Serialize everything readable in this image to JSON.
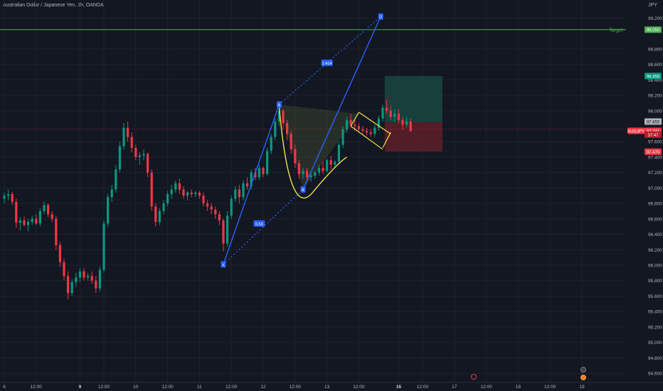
{
  "header": {
    "title": "Australian Dollar / Japanese Yen, 1h, OANDA",
    "currency": "JPY"
  },
  "chart_data": {
    "type": "candlestick",
    "symbol": "AUDJPY",
    "yrange": [
      94.55,
      99.35
    ],
    "yticks": [
      {
        "v": 99.2,
        "label": "99.200"
      },
      {
        "v": 98.8,
        "label": "98.800"
      },
      {
        "v": 98.6,
        "label": "98.600"
      },
      {
        "v": 98.4,
        "label": "98.400"
      },
      {
        "v": 98.2,
        "label": "98.200"
      },
      {
        "v": 98.0,
        "label": "98.000"
      },
      {
        "v": 97.6,
        "label": "97.600"
      },
      {
        "v": 97.4,
        "label": "97.400"
      },
      {
        "v": 97.2,
        "label": "97.200"
      },
      {
        "v": 97.0,
        "label": "97.000"
      },
      {
        "v": 96.8,
        "label": "96.800"
      },
      {
        "v": 96.6,
        "label": "96.600"
      },
      {
        "v": 96.4,
        "label": "96.400"
      },
      {
        "v": 96.2,
        "label": "96.200"
      },
      {
        "v": 96.0,
        "label": "96.000"
      },
      {
        "v": 95.8,
        "label": "95.800"
      },
      {
        "v": 95.6,
        "label": "95.600"
      },
      {
        "v": 95.4,
        "label": "95.400"
      },
      {
        "v": 95.2,
        "label": "95.200"
      },
      {
        "v": 95.0,
        "label": "95.000"
      },
      {
        "v": 94.8,
        "label": "94.800"
      },
      {
        "v": 94.6,
        "label": "94.600"
      }
    ],
    "xrange": [
      0,
      152
    ],
    "xticks": [
      {
        "t": 0,
        "label": "6",
        "bold": false
      },
      {
        "t": 8,
        "label": "12:00",
        "bold": false
      },
      {
        "t": 19,
        "label": "9",
        "bold": true
      },
      {
        "t": 25,
        "label": "12:00",
        "bold": false
      },
      {
        "t": 33,
        "label": "10",
        "bold": false
      },
      {
        "t": 41,
        "label": "12:00",
        "bold": false
      },
      {
        "t": 49,
        "label": "11",
        "bold": false
      },
      {
        "t": 57,
        "label": "12:00",
        "bold": false
      },
      {
        "t": 65,
        "label": "12",
        "bold": false
      },
      {
        "t": 73,
        "label": "12:00",
        "bold": false
      },
      {
        "t": 81,
        "label": "13",
        "bold": false
      },
      {
        "t": 89,
        "label": "12:00",
        "bold": false
      },
      {
        "t": 99,
        "label": "16",
        "bold": true
      },
      {
        "t": 105,
        "label": "12:00",
        "bold": false
      },
      {
        "t": 113,
        "label": "17",
        "bold": false
      },
      {
        "t": 121,
        "label": "12:00",
        "bold": false
      },
      {
        "t": 129,
        "label": "18",
        "bold": false
      },
      {
        "t": 137,
        "label": "12:00",
        "bold": false
      },
      {
        "t": 145,
        "label": "19",
        "bold": false
      }
    ],
    "candles": [
      [
        96.86,
        96.94,
        96.8,
        96.9
      ],
      [
        96.9,
        96.98,
        96.84,
        96.92
      ],
      [
        96.92,
        96.95,
        96.78,
        96.82
      ],
      [
        96.82,
        96.86,
        96.48,
        96.55
      ],
      [
        96.55,
        96.62,
        96.45,
        96.58
      ],
      [
        96.58,
        96.63,
        96.5,
        96.52
      ],
      [
        96.52,
        96.6,
        96.44,
        96.56
      ],
      [
        96.56,
        96.64,
        96.52,
        96.6
      ],
      [
        96.6,
        96.66,
        96.52,
        96.54
      ],
      [
        96.54,
        96.74,
        96.5,
        96.7
      ],
      [
        96.7,
        96.82,
        96.66,
        96.78
      ],
      [
        96.78,
        96.8,
        96.62,
        96.66
      ],
      [
        96.66,
        96.7,
        96.56,
        96.6
      ],
      [
        96.6,
        96.64,
        96.2,
        96.26
      ],
      [
        96.26,
        96.3,
        95.98,
        96.04
      ],
      [
        96.04,
        96.08,
        95.8,
        95.86
      ],
      [
        95.86,
        95.92,
        95.56,
        95.64
      ],
      [
        95.64,
        95.82,
        95.6,
        95.78
      ],
      [
        95.78,
        95.9,
        95.72,
        95.84
      ],
      [
        95.84,
        95.96,
        95.78,
        95.92
      ],
      [
        95.92,
        95.96,
        95.8,
        95.84
      ],
      [
        95.84,
        95.9,
        95.8,
        95.86
      ],
      [
        95.86,
        95.92,
        95.76,
        95.8
      ],
      [
        95.8,
        95.86,
        95.64,
        95.7
      ],
      [
        95.7,
        95.98,
        95.66,
        95.94
      ],
      [
        95.94,
        96.58,
        95.9,
        96.54
      ],
      [
        96.54,
        96.92,
        96.5,
        96.88
      ],
      [
        96.88,
        97.04,
        96.82,
        96.98
      ],
      [
        96.98,
        97.3,
        96.94,
        97.24
      ],
      [
        97.24,
        97.6,
        97.2,
        97.54
      ],
      [
        97.54,
        97.84,
        97.5,
        97.78
      ],
      [
        97.78,
        97.86,
        97.6,
        97.66
      ],
      [
        97.66,
        97.72,
        97.46,
        97.52
      ],
      [
        97.52,
        97.56,
        97.36,
        97.4
      ],
      [
        97.4,
        97.46,
        97.3,
        97.42
      ],
      [
        97.42,
        97.5,
        97.36,
        97.44
      ],
      [
        97.44,
        97.46,
        97.14,
        97.2
      ],
      [
        97.2,
        97.24,
        96.7,
        96.76
      ],
      [
        96.76,
        96.8,
        96.5,
        96.56
      ],
      [
        96.56,
        96.74,
        96.52,
        96.7
      ],
      [
        96.7,
        96.84,
        96.66,
        96.8
      ],
      [
        96.8,
        96.96,
        96.76,
        96.92
      ],
      [
        96.92,
        97.04,
        96.86,
        96.98
      ],
      [
        96.98,
        97.1,
        96.94,
        97.06
      ],
      [
        97.06,
        97.12,
        96.92,
        96.98
      ],
      [
        96.98,
        97.02,
        96.86,
        96.9
      ],
      [
        96.9,
        96.96,
        96.84,
        96.94
      ],
      [
        96.94,
        96.98,
        96.88,
        96.92
      ],
      [
        96.92,
        96.96,
        96.88,
        96.94
      ],
      [
        96.94,
        96.96,
        96.86,
        96.9
      ],
      [
        96.9,
        96.94,
        96.76,
        96.8
      ],
      [
        96.8,
        96.84,
        96.7,
        96.76
      ],
      [
        96.76,
        96.8,
        96.66,
        96.72
      ],
      [
        96.72,
        96.76,
        96.6,
        96.66
      ],
      [
        96.66,
        96.7,
        96.52,
        96.58
      ],
      [
        96.58,
        96.6,
        96.18,
        96.28
      ],
      [
        96.28,
        96.7,
        96.24,
        96.64
      ],
      [
        96.64,
        96.9,
        96.6,
        96.86
      ],
      [
        96.86,
        97.02,
        96.82,
        96.98
      ],
      [
        96.98,
        97.04,
        96.8,
        96.88
      ],
      [
        96.88,
        97.1,
        96.84,
        97.06
      ],
      [
        97.06,
        97.14,
        96.98,
        97.02
      ],
      [
        97.02,
        97.24,
        96.98,
        97.2
      ],
      [
        97.2,
        97.26,
        97.1,
        97.14
      ],
      [
        97.14,
        97.3,
        97.1,
        97.26
      ],
      [
        97.26,
        97.28,
        97.14,
        97.18
      ],
      [
        97.18,
        97.52,
        97.16,
        97.48
      ],
      [
        97.48,
        97.7,
        97.44,
        97.66
      ],
      [
        97.66,
        97.9,
        97.62,
        97.86
      ],
      [
        97.86,
        98.1,
        97.8,
        98.0
      ],
      [
        98.0,
        98.02,
        97.76,
        97.84
      ],
      [
        97.84,
        97.88,
        97.62,
        97.7
      ],
      [
        97.7,
        97.74,
        97.44,
        97.5
      ],
      [
        97.5,
        97.56,
        97.26,
        97.32
      ],
      [
        97.32,
        97.36,
        97.12,
        97.18
      ],
      [
        97.18,
        97.26,
        97.12,
        97.22
      ],
      [
        97.22,
        97.26,
        97.1,
        97.14
      ],
      [
        97.14,
        97.2,
        97.08,
        97.16
      ],
      [
        97.16,
        97.22,
        97.12,
        97.2
      ],
      [
        97.2,
        97.3,
        97.16,
        97.26
      ],
      [
        97.26,
        97.34,
        97.18,
        97.22
      ],
      [
        97.22,
        97.38,
        97.2,
        97.36
      ],
      [
        97.36,
        97.42,
        97.24,
        97.3
      ],
      [
        97.3,
        97.36,
        97.26,
        97.34
      ],
      [
        97.34,
        97.6,
        97.3,
        97.56
      ],
      [
        97.56,
        97.8,
        97.52,
        97.76
      ],
      [
        97.76,
        97.92,
        97.72,
        97.88
      ],
      [
        97.88,
        97.96,
        97.78,
        97.82
      ],
      [
        97.82,
        97.88,
        97.74,
        97.8
      ],
      [
        97.8,
        97.84,
        97.72,
        97.76
      ],
      [
        97.76,
        97.8,
        97.7,
        97.74
      ],
      [
        97.74,
        97.78,
        97.68,
        97.72
      ],
      [
        97.72,
        97.76,
        97.66,
        97.7
      ],
      [
        97.7,
        97.82,
        97.66,
        97.78
      ],
      [
        97.78,
        97.94,
        97.74,
        97.9
      ],
      [
        97.9,
        98.08,
        97.86,
        98.04
      ],
      [
        98.04,
        98.14,
        97.96,
        98.0
      ],
      [
        98.0,
        98.06,
        97.88,
        97.92
      ],
      [
        97.92,
        98.02,
        97.86,
        97.96
      ],
      [
        97.96,
        98.02,
        97.84,
        97.88
      ],
      [
        97.88,
        97.92,
        97.76,
        97.82
      ],
      [
        97.82,
        97.92,
        97.78,
        97.86
      ],
      [
        97.86,
        97.9,
        97.72,
        97.74
      ]
    ],
    "pattern": {
      "X": {
        "t": 55,
        "v": 96.01,
        "label": "X"
      },
      "A": {
        "t": 69,
        "v": 98.08,
        "label": "A"
      },
      "B": {
        "t": 75,
        "v": 96.98,
        "label": "B"
      },
      "D": {
        "t": 94.5,
        "v": 99.22,
        "label": "D"
      },
      "ratio_xb": {
        "label": "0.53",
        "t": 64,
        "v": 96.54
      },
      "ratio_ad": {
        "label": "1.414",
        "t": 81,
        "v": 98.62
      }
    },
    "triangle": [
      [
        69,
        98.08
      ],
      [
        89,
        97.96
      ],
      [
        75,
        96.98
      ]
    ],
    "cup": {
      "start": [
        69,
        98.06
      ],
      "bottom": [
        76,
        96.98
      ],
      "end": [
        86,
        97.4
      ]
    },
    "flag": {
      "upper": [
        [
          89,
          97.98
        ],
        [
          97,
          97.7
        ]
      ],
      "lower": [
        [
          87,
          97.8
        ],
        [
          95,
          97.5
        ]
      ],
      "close": [
        [
          97,
          97.72
        ],
        [
          95,
          97.52
        ]
      ]
    },
    "position": {
      "t_start": 95.5,
      "t_end": 110,
      "target": 98.45,
      "entry": 97.85,
      "stop": 97.47
    },
    "target_line": {
      "v": 99.05,
      "label": "Target"
    },
    "current_line": {
      "v": 97.76
    },
    "price_labels": {
      "target": {
        "v": 99.05,
        "text": "99.050"
      },
      "tp": {
        "v": 98.45,
        "text": "98.458"
      },
      "entry": {
        "v": 97.86,
        "text": "97.855"
      },
      "symbol": {
        "v": 97.74,
        "text": "AUDJPY"
      },
      "last": {
        "v": 97.74,
        "text": "97.741"
      },
      "countdown": {
        "v": 97.69,
        "text": "37:47"
      },
      "sl": {
        "v": 97.47,
        "text": "97.470"
      }
    },
    "colors": {
      "background": "#131722",
      "grid": "#1e222d",
      "up": "#089981",
      "down": "#f23645",
      "pattern": "#2962ff",
      "cup": "#f5e14a",
      "target_line": "#4caf50",
      "profit_zone": "#1b4d44",
      "loss_zone": "#5e1f28"
    },
    "grid": true
  }
}
